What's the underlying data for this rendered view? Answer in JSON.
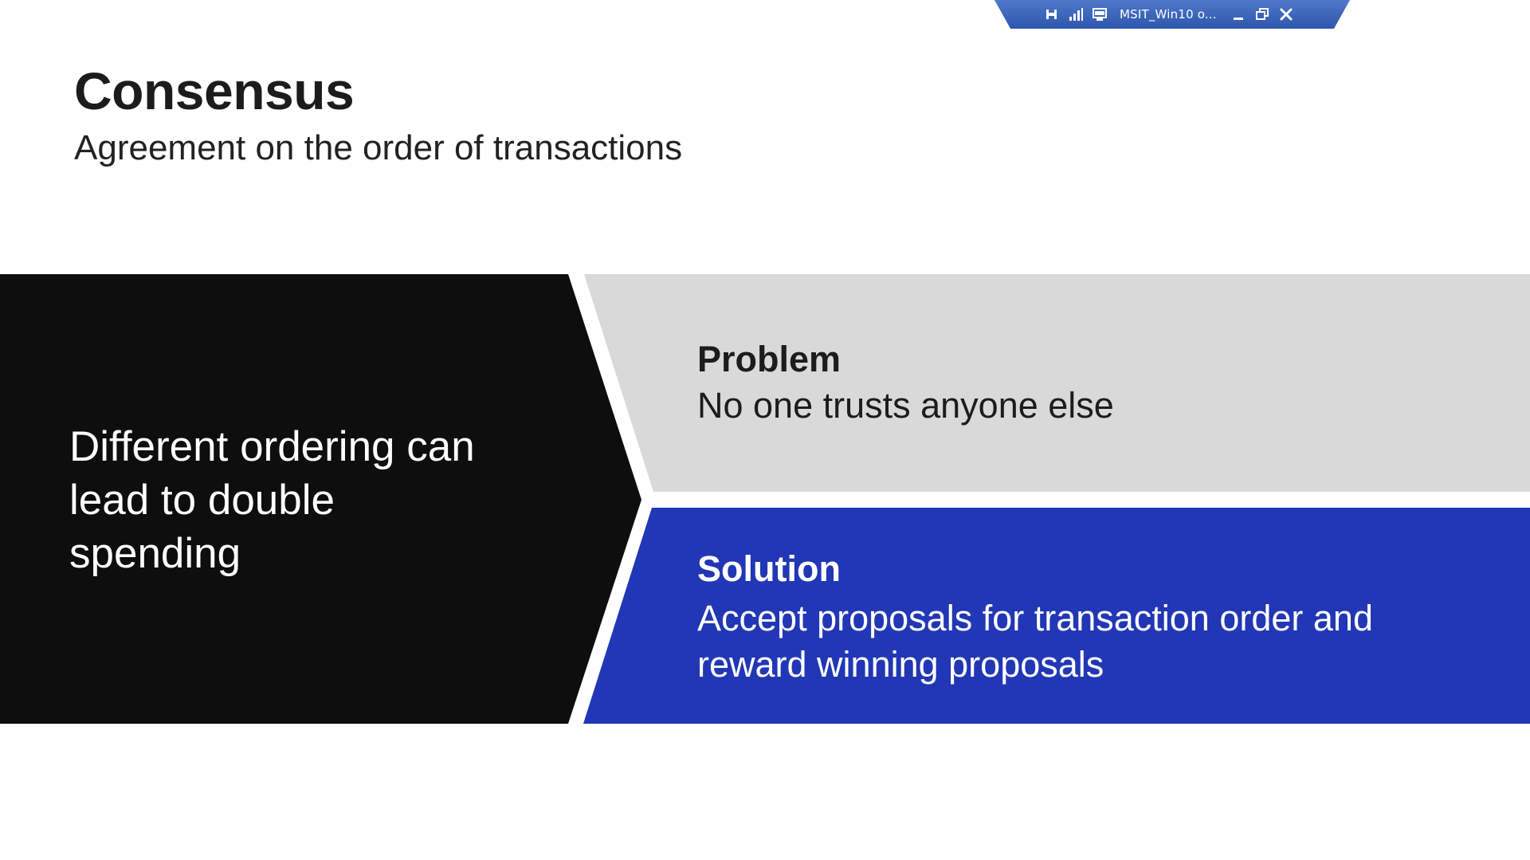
{
  "rdp_bar": {
    "title": "MSIT_Win10 o...",
    "icons": [
      "pin-icon",
      "signal-icon",
      "monitor-icon",
      "minimize-icon",
      "restore-icon",
      "close-icon"
    ]
  },
  "slide": {
    "title": "Consensus",
    "subtitle": "Agreement on the order of transactions",
    "left_panel": {
      "text": "Different ordering can lead to double spending"
    },
    "problem": {
      "heading": "Problem",
      "text": "No one trusts anyone else"
    },
    "solution": {
      "heading": "Solution",
      "text": "Accept proposals for transaction order and reward winning proposals"
    }
  },
  "colors": {
    "left_panel": "#0e0e0e",
    "problem_panel": "#d9d9d9",
    "solution_panel": "#2137b5",
    "rdp_bar": "#3a63b8"
  }
}
